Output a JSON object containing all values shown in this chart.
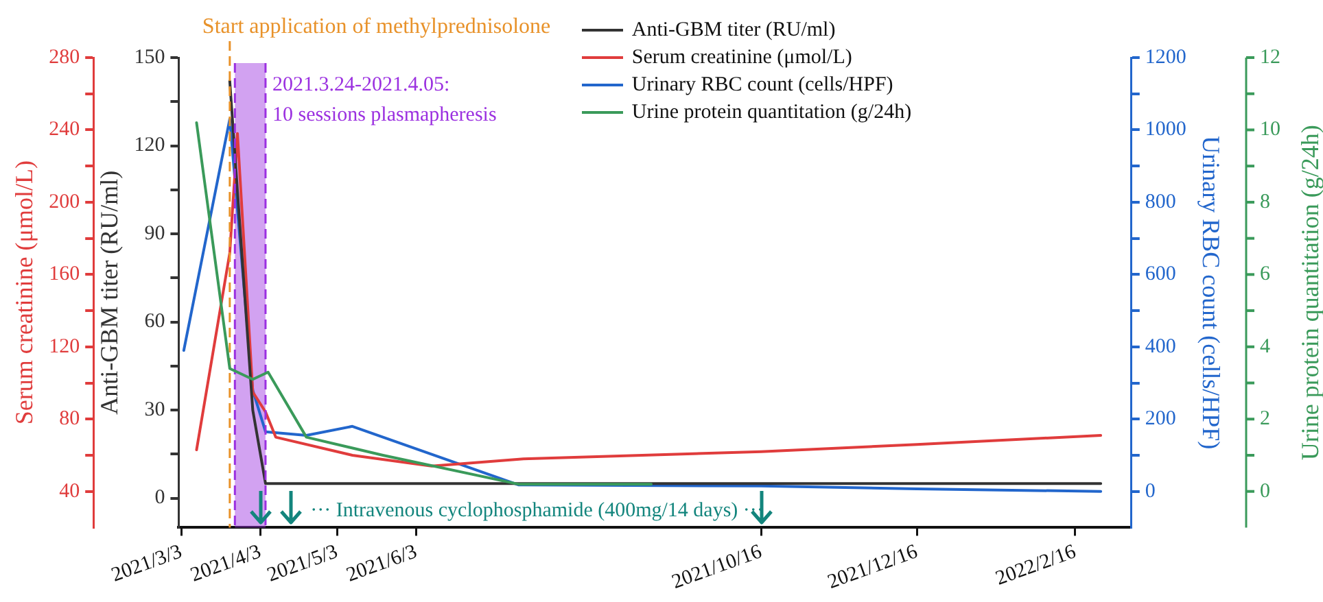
{
  "chart_data": [
    {
      "type": "line",
      "ylabel": "Anti-GBM titer (RU/ml)",
      "y2label": "Serum creatinine (μmol/L)",
      "y3label": "Urinary RBC count (cells/HPF)",
      "xlim": [
        "2021-03-02",
        "2022-03-10"
      ],
      "xticks": [
        {
          "value": "2021-03-03",
          "label": "2021/3/3"
        },
        {
          "value": "2021-04-03",
          "label": "2021/4/3"
        },
        {
          "value": "2021-05-03",
          "label": "2021/5/3"
        },
        {
          "value": "2021-06-03",
          "label": "2021/6/3"
        },
        {
          "value": "2021-10-16",
          "label": "2021/10/16"
        },
        {
          "value": "2021-12-16",
          "label": "2021/12/16"
        },
        {
          "value": "2022-02-16",
          "label": "2022/2/16"
        }
      ],
      "ylim": [
        -10,
        150
      ],
      "yticks": [
        0,
        {
          "value": 15,
          "label": null
        },
        30,
        {
          "value": 45,
          "label": null
        },
        60,
        {
          "value": 75,
          "label": null
        },
        90,
        {
          "value": 105,
          "label": null
        },
        120,
        {
          "value": 135,
          "label": null
        },
        150
      ],
      "y2lim": [
        20,
        280
      ],
      "y2ticks": [
        40,
        {
          "value": 60,
          "label": null
        },
        80,
        {
          "value": 100,
          "label": null
        },
        120,
        {
          "value": 140,
          "label": null
        },
        160,
        {
          "value": 180,
          "label": null
        },
        200,
        {
          "value": 220,
          "label": null
        },
        240,
        {
          "value": 260,
          "label": null
        },
        280
      ],
      "y3lim": [
        -100,
        1200
      ],
      "y3ticks": [
        0,
        {
          "value": 100,
          "label": null
        },
        200,
        {
          "value": 300,
          "label": null
        },
        400,
        {
          "value": 500,
          "label": null
        },
        600,
        {
          "value": 700,
          "label": null
        },
        800,
        {
          "value": 900,
          "label": null
        },
        1000,
        {
          "value": 1100,
          "label": null
        },
        1200
      ],
      "series": [
        {
          "name": "Anti-GBM titer (RU/ml)",
          "color": "#333333",
          "x": [
            "2021-03-22",
            "2021-03-31",
            "2021-04-05",
            "2022-02-26"
          ],
          "values": [
            142,
            30,
            5,
            5
          ]
        },
        {
          "name": "Serum creatinine (μmol/L)",
          "color": "#e03c3c",
          "axis": "y2",
          "x": [
            "2021-03-09",
            "2021-03-22",
            "2021-03-25",
            "2021-03-31",
            "2021-04-05",
            "2021-04-09",
            "2021-05-09",
            "2021-06-09",
            "2021-07-15",
            "2021-10-16",
            "2021-12-16",
            "2022-02-26"
          ],
          "values": [
            63,
            172,
            238,
            95,
            84,
            70,
            60,
            54,
            58,
            62,
            66,
            71
          ]
        },
        {
          "name": "Urinary RBC count (cells/HPF)",
          "color": "#2266cc",
          "axis": "y3",
          "x": [
            "2021-03-04",
            "2021-03-22",
            "2021-03-31",
            "2021-04-05",
            "2021-04-21",
            "2021-05-09",
            "2021-07-13",
            "2021-10-16",
            "2021-12-16",
            "2022-02-26"
          ],
          "values": [
            390,
            1030,
            280,
            165,
            155,
            180,
            18,
            15,
            7,
            0
          ]
        }
      ],
      "ref_lines": [
        {
          "axis": "x",
          "value": "2021-03-22",
          "label": "Start application of methylprednisolone",
          "color": "#e8922a",
          "line_style": "dashed"
        },
        {
          "axis": "x",
          "value": "2021-03-24",
          "color": "#9b30e0",
          "line_style": "dashed"
        },
        {
          "axis": "x",
          "value": "2021-04-05",
          "color": "#9b30e0",
          "line_style": "dashed"
        }
      ],
      "bands": [
        {
          "axis": "x",
          "from": "2021-03-24",
          "to": "2021-04-05",
          "label": "2021.3.24-2021.4.05:\n10 sessions plasmapheresis",
          "color": "#9b30e0"
        }
      ],
      "annotations": [
        "··· Intravenous cyclophosphamide (400mg/14 days) ···"
      ],
      "legend": "top right",
      "marker": "none",
      "line_style": "solid"
    },
    {
      "type": "line",
      "ylabel": "Urine protein quantitation (g/24h)",
      "xlim": [
        "2021-03-02",
        "2022-03-10"
      ],
      "tick_labels": "y",
      "ylim": [
        -1,
        12
      ],
      "yticks": [
        0,
        {
          "value": 1,
          "label": null
        },
        2,
        {
          "value": 3,
          "label": null
        },
        4,
        {
          "value": 5,
          "label": null
        },
        6,
        {
          "value": 7,
          "label": null
        },
        8,
        {
          "value": 9,
          "label": null
        },
        10,
        {
          "value": 11,
          "label": null
        },
        12
      ],
      "series": [
        {
          "name": "Urine protein quantitation (g/24h)",
          "color": "#3a9a5a",
          "x": [
            "2021-03-09",
            "2021-03-22",
            "2021-03-31",
            "2021-04-06",
            "2021-04-21",
            "2021-05-21",
            "2021-07-13",
            "2021-09-03"
          ],
          "values": [
            10.2,
            3.4,
            3.1,
            3.3,
            1.5,
            1.0,
            0.2,
            0.2
          ]
        }
      ],
      "legend": "top right",
      "marker": "none",
      "line_style": "solid"
    }
  ]
}
